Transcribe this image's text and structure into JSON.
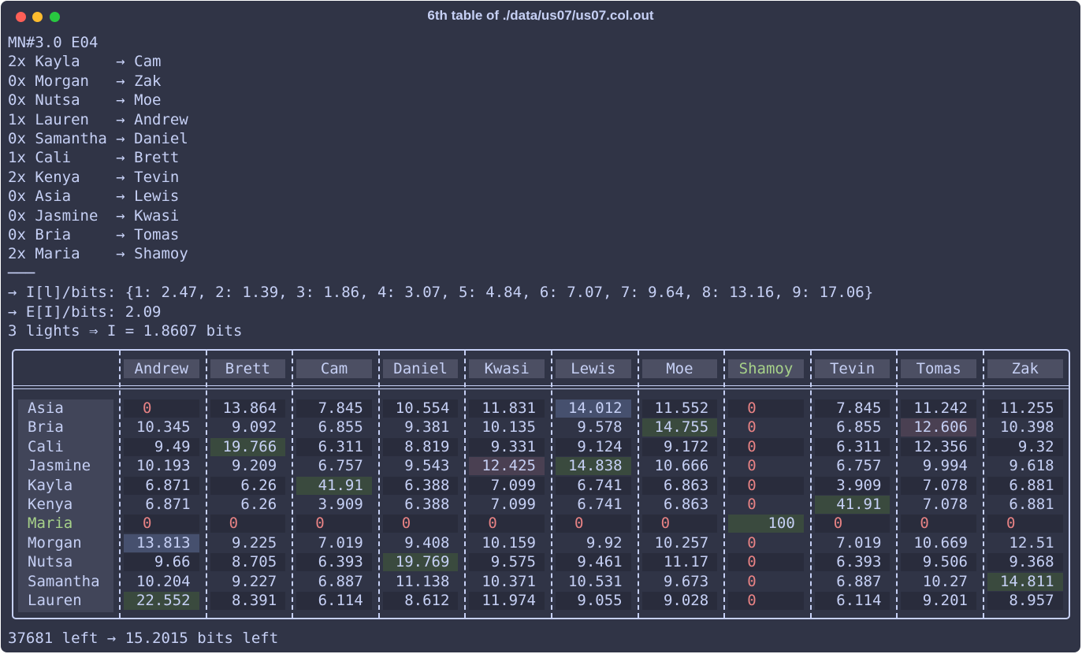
{
  "window": {
    "title": "6th table of ./data/us07/us07.col.out"
  },
  "text_lines": [
    "MN#3.0 E04",
    "2x Kayla    → Cam",
    "0x Morgan   → Zak",
    "0x Nutsa    → Moe",
    "1x Lauren   → Andrew",
    "0x Samantha → Daniel",
    "1x Cali     → Brett",
    "2x Kenya    → Tevin",
    "0x Asia     → Lewis",
    "0x Jasmine  → Kwasi",
    "0x Bria     → Tomas",
    "2x Maria    → Shamoy",
    "───",
    "→ I[l]/bits: {1: 2.47, 2: 1.39, 3: 1.86, 4: 3.07, 5: 4.84, 6: 7.07, 7: 9.64, 8: 13.16, 9: 17.06}",
    "→ E[I]/bits: 2.09",
    "3 lights ⇒ I = 1.8607 bits"
  ],
  "table": {
    "columns": [
      "Andrew",
      "Brett",
      "Cam",
      "Daniel",
      "Kwasi",
      "Lewis",
      "Moe",
      "Shamoy",
      "Tevin",
      "Tomas",
      "Zak"
    ],
    "accent_column": 7,
    "accent_row": 6,
    "rows": [
      {
        "name": "Asia",
        "values": [
          0,
          13.864,
          7.845,
          10.554,
          11.831,
          14.012,
          11.552,
          0,
          7.845,
          11.242,
          11.255
        ]
      },
      {
        "name": "Bria",
        "values": [
          10.345,
          9.092,
          6.855,
          9.381,
          10.135,
          9.578,
          14.755,
          0,
          6.855,
          12.606,
          10.398
        ]
      },
      {
        "name": "Cali",
        "values": [
          9.49,
          19.766,
          6.311,
          8.819,
          9.331,
          9.124,
          9.172,
          0,
          6.311,
          12.356,
          9.32
        ]
      },
      {
        "name": "Jasmine",
        "values": [
          10.193,
          9.209,
          6.757,
          9.543,
          12.425,
          14.838,
          10.666,
          0,
          6.757,
          9.994,
          9.618
        ]
      },
      {
        "name": "Kayla",
        "values": [
          6.871,
          6.26,
          41.91,
          6.388,
          7.099,
          6.741,
          6.863,
          0,
          3.909,
          7.078,
          6.881
        ]
      },
      {
        "name": "Kenya",
        "values": [
          6.871,
          6.26,
          3.909,
          6.388,
          7.099,
          6.741,
          6.863,
          0,
          41.91,
          7.078,
          6.881
        ]
      },
      {
        "name": "Maria",
        "values": [
          0,
          0,
          0,
          0,
          0,
          0,
          0,
          100,
          0,
          0,
          0
        ]
      },
      {
        "name": "Morgan",
        "values": [
          13.813,
          9.225,
          7.019,
          9.408,
          10.159,
          9.92,
          10.257,
          0,
          7.019,
          10.669,
          12.51
        ]
      },
      {
        "name": "Nutsa",
        "values": [
          9.66,
          8.705,
          6.393,
          19.769,
          9.575,
          9.461,
          11.17,
          0,
          6.393,
          9.506,
          9.368
        ]
      },
      {
        "name": "Samantha",
        "values": [
          10.204,
          9.227,
          6.887,
          11.138,
          10.371,
          10.531,
          9.673,
          0,
          6.887,
          10.27,
          14.811
        ]
      },
      {
        "name": "Lauren",
        "values": [
          22.552,
          8.391,
          6.114,
          8.612,
          11.974,
          9.055,
          9.028,
          0,
          6.114,
          9.201,
          8.957
        ]
      }
    ],
    "highlights": [
      {
        "row": 0,
        "col": 5,
        "color": "#46506e"
      },
      {
        "row": 1,
        "col": 6,
        "color": "#3a4a3e"
      },
      {
        "row": 1,
        "col": 9,
        "color": "#4a4052"
      },
      {
        "row": 2,
        "col": 1,
        "color": "#3a4a3e"
      },
      {
        "row": 3,
        "col": 4,
        "color": "#4a4052"
      },
      {
        "row": 3,
        "col": 5,
        "color": "#3a4a3e"
      },
      {
        "row": 4,
        "col": 2,
        "color": "#3a4a3e"
      },
      {
        "row": 5,
        "col": 8,
        "color": "#3a4a3e"
      },
      {
        "row": 6,
        "col": 7,
        "color": "#3a4a3e"
      },
      {
        "row": 7,
        "col": 0,
        "color": "#46506e"
      },
      {
        "row": 8,
        "col": 3,
        "color": "#3a4a3e"
      },
      {
        "row": 9,
        "col": 10,
        "color": "#3a4a3e"
      },
      {
        "row": 10,
        "col": 0,
        "color": "#3a4a3e"
      }
    ]
  },
  "footer": "37681 left → 15.2015 bits left"
}
